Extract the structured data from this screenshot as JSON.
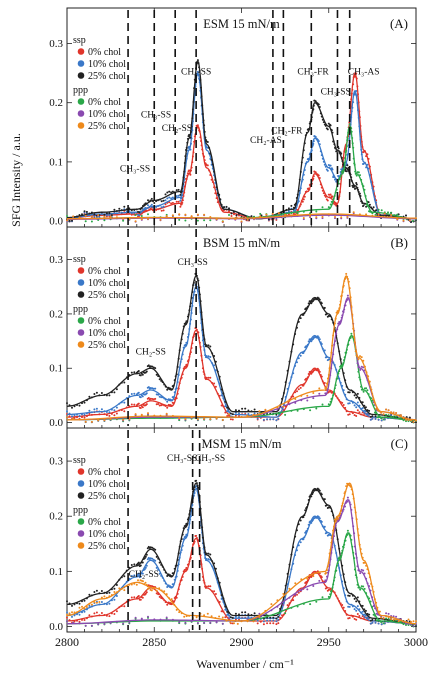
{
  "chart_data": {
    "type": "line",
    "xlabel": "Wavenumber / cm⁻¹",
    "ylabel": "SFG Intensity / a.u.",
    "xlim": [
      2800,
      3000
    ],
    "ylim": [
      -0.01,
      0.36
    ],
    "x_ticks": [
      2800,
      2850,
      2900,
      2950,
      3000
    ],
    "y_ticks": [
      0.0,
      0.1,
      0.2,
      0.3
    ],
    "legend": {
      "placement": "top-left",
      "groups": [
        {
          "label": "ssp",
          "entries": [
            "0% chol",
            "10% chol",
            "25% chol"
          ],
          "colors": [
            "#e0352b",
            "#3a78c8",
            "#222222"
          ]
        },
        {
          "label": "ppp",
          "entries": [
            "0% chol",
            "10% chol",
            "25% chol"
          ],
          "colors": [
            "#2aa748",
            "#8a4ab0",
            "#ee8a1c"
          ]
        }
      ]
    },
    "panels": [
      {
        "id": "A",
        "letter": "(A)",
        "title": "ESM 15 mN/m",
        "vlines": [
          2835,
          2850,
          2862,
          2874,
          2918,
          2924,
          2940,
          2955,
          2962
        ],
        "annotations": [
          {
            "text": "CH₃-SS",
            "x": 2839,
            "y": 0.084
          },
          {
            "text": "CH₃-SS",
            "x": 2851,
            "y": 0.175
          },
          {
            "text": "CH₂-SS",
            "x": 2863,
            "y": 0.152
          },
          {
            "text": "CH₃-SS",
            "x": 2874,
            "y": 0.248
          },
          {
            "text": "CH₂-AS",
            "x": 2914,
            "y": 0.132
          },
          {
            "text": "CH₂-FR",
            "x": 2926,
            "y": 0.148
          },
          {
            "text": "CH₃-FR",
            "x": 2941,
            "y": 0.248
          },
          {
            "text": "CH₃-SS",
            "x": 2954,
            "y": 0.214
          },
          {
            "text": "CH₃-AS",
            "x": 2970,
            "y": 0.248
          }
        ],
        "series": [
          {
            "name": "ssp 0% chol",
            "x": [
              2800,
              2820,
              2840,
              2850,
              2865,
              2870,
              2875,
              2880,
              2890,
              2910,
              2930,
              2938,
              2942,
              2950,
              2955,
              2960,
              2965,
              2970,
              2980,
              3000
            ],
            "y": [
              0.005,
              0.01,
              0.012,
              0.02,
              0.03,
              0.08,
              0.16,
              0.09,
              0.015,
              0.004,
              0.01,
              0.05,
              0.08,
              0.04,
              0.03,
              0.13,
              0.25,
              0.12,
              0.01,
              0.004
            ]
          },
          {
            "name": "ssp 10% chol",
            "x": [
              2800,
              2820,
              2840,
              2850,
              2865,
              2870,
              2875,
              2880,
              2890,
              2910,
              2930,
              2938,
              2942,
              2950,
              2955,
              2960,
              2965,
              2970,
              2980,
              3000
            ],
            "y": [
              0.005,
              0.012,
              0.015,
              0.025,
              0.04,
              0.12,
              0.25,
              0.12,
              0.02,
              0.004,
              0.015,
              0.1,
              0.14,
              0.09,
              0.07,
              0.1,
              0.22,
              0.1,
              0.01,
              0.004
            ]
          },
          {
            "name": "ssp 25% chol",
            "x": [
              2800,
              2820,
              2840,
              2850,
              2865,
              2870,
              2875,
              2880,
              2890,
              2910,
              2930,
              2938,
              2942,
              2950,
              2955,
              2960,
              2965,
              2970,
              2980,
              3000
            ],
            "y": [
              0.006,
              0.015,
              0.02,
              0.035,
              0.05,
              0.14,
              0.27,
              0.13,
              0.02,
              0.004,
              0.02,
              0.15,
              0.2,
              0.16,
              0.12,
              0.09,
              0.06,
              0.03,
              0.01,
              0.004
            ]
          },
          {
            "name": "ppp 0% chol",
            "x": [
              2800,
              2850,
              2900,
              2950,
              2958,
              2962,
              2966,
              2975,
              3000
            ],
            "y": [
              0.004,
              0.006,
              0.005,
              0.02,
              0.08,
              0.16,
              0.08,
              0.015,
              0.004
            ]
          },
          {
            "name": "ppp 10% chol",
            "x": [
              2800,
              2850,
              2900,
              2950,
              3000
            ],
            "y": [
              0.003,
              0.005,
              0.004,
              0.01,
              0.004
            ]
          },
          {
            "name": "ppp 25% chol",
            "x": [
              2800,
              2850,
              2900,
              2950,
              3000
            ],
            "y": [
              0.004,
              0.006,
              0.005,
              0.012,
              0.005
            ]
          }
        ]
      },
      {
        "id": "B",
        "letter": "(B)",
        "title": "BSM 15 mN/m",
        "vlines": [
          2835,
          2874
        ],
        "annotations": [
          {
            "text": "CH₂-SS",
            "x": 2848,
            "y": 0.125
          },
          {
            "text": "CH₃-SS",
            "x": 2872,
            "y": 0.29
          }
        ],
        "series": [
          {
            "name": "ssp 0% chol",
            "x": [
              2800,
              2820,
              2840,
              2848,
              2860,
              2868,
              2874,
              2880,
              2895,
              2920,
              2935,
              2942,
              2950,
              2962,
              2975,
              3000
            ],
            "y": [
              0.01,
              0.015,
              0.03,
              0.04,
              0.03,
              0.1,
              0.17,
              0.08,
              0.01,
              0.01,
              0.07,
              0.1,
              0.06,
              0.02,
              0.01,
              0.005
            ]
          },
          {
            "name": "ssp 10% chol",
            "x": [
              2800,
              2820,
              2840,
              2848,
              2860,
              2868,
              2874,
              2880,
              2895,
              2920,
              2935,
              2942,
              2950,
              2962,
              2975,
              3000
            ],
            "y": [
              0.015,
              0.02,
              0.05,
              0.06,
              0.04,
              0.14,
              0.25,
              0.12,
              0.015,
              0.01,
              0.13,
              0.16,
              0.12,
              0.04,
              0.01,
              0.005
            ]
          },
          {
            "name": "ssp 25% chol",
            "x": [
              2800,
              2820,
              2840,
              2848,
              2860,
              2868,
              2874,
              2880,
              2895,
              2920,
              2935,
              2942,
              2950,
              2962,
              2975,
              3000
            ],
            "y": [
              0.03,
              0.05,
              0.09,
              0.1,
              0.06,
              0.18,
              0.27,
              0.14,
              0.02,
              0.02,
              0.2,
              0.23,
              0.2,
              0.06,
              0.015,
              0.005
            ]
          },
          {
            "name": "ppp 0% chol",
            "x": [
              2800,
              2850,
              2900,
              2950,
              2957,
              2963,
              2970,
              2980,
              3000
            ],
            "y": [
              0.005,
              0.008,
              0.01,
              0.03,
              0.1,
              0.16,
              0.06,
              0.01,
              0.004
            ]
          },
          {
            "name": "ppp 10% chol",
            "x": [
              2800,
              2850,
              2900,
              2948,
              2956,
              2961,
              2968,
              2980,
              3000
            ],
            "y": [
              0.005,
              0.01,
              0.01,
              0.05,
              0.18,
              0.23,
              0.1,
              0.02,
              0.005
            ]
          },
          {
            "name": "ppp 25% chol",
            "x": [
              2800,
              2850,
              2900,
              2948,
              2955,
              2960,
              2967,
              2980,
              3000
            ],
            "y": [
              0.005,
              0.012,
              0.01,
              0.06,
              0.2,
              0.27,
              0.12,
              0.02,
              0.005
            ]
          }
        ]
      },
      {
        "id": "C",
        "letter": "(C)",
        "title": "MSM 15 mN/m",
        "vlines": [
          2835,
          2872,
          2876
        ],
        "annotations": [
          {
            "text": "CH₂-SS",
            "x": 2844,
            "y": 0.09
          },
          {
            "text": "CH₃-SS",
            "x": 2866,
            "y": 0.3
          },
          {
            "text": "CH₃-SS",
            "x": 2882,
            "y": 0.3
          }
        ],
        "series": [
          {
            "name": "ssp 0% chol",
            "x": [
              2800,
              2820,
              2840,
              2848,
              2860,
              2868,
              2874,
              2880,
              2895,
              2920,
              2935,
              2942,
              2950,
              2962,
              2975,
              3000
            ],
            "y": [
              0.01,
              0.02,
              0.05,
              0.07,
              0.04,
              0.1,
              0.16,
              0.07,
              0.01,
              0.01,
              0.07,
              0.1,
              0.07,
              0.02,
              0.01,
              0.005
            ]
          },
          {
            "name": "ssp 10% chol",
            "x": [
              2800,
              2820,
              2840,
              2848,
              2860,
              2868,
              2874,
              2880,
              2895,
              2920,
              2935,
              2942,
              2950,
              2962,
              2975,
              3000
            ],
            "y": [
              0.02,
              0.04,
              0.09,
              0.12,
              0.07,
              0.16,
              0.25,
              0.12,
              0.015,
              0.015,
              0.16,
              0.2,
              0.17,
              0.04,
              0.01,
              0.005
            ]
          },
          {
            "name": "ssp 25% chol",
            "x": [
              2800,
              2820,
              2840,
              2848,
              2860,
              2868,
              2874,
              2880,
              2895,
              2920,
              2935,
              2942,
              2950,
              2962,
              2975,
              3000
            ],
            "y": [
              0.04,
              0.06,
              0.11,
              0.14,
              0.09,
              0.18,
              0.26,
              0.13,
              0.02,
              0.02,
              0.2,
              0.25,
              0.22,
              0.06,
              0.015,
              0.005
            ]
          },
          {
            "name": "ppp 0% chol",
            "x": [
              2800,
              2850,
              2900,
              2950,
              2956,
              2961,
              2968,
              2980,
              3000
            ],
            "y": [
              0.005,
              0.01,
              0.01,
              0.05,
              0.12,
              0.17,
              0.07,
              0.01,
              0.004
            ]
          },
          {
            "name": "ppp 10% chol",
            "x": [
              2800,
              2850,
              2900,
              2948,
              2955,
              2961,
              2968,
              2980,
              3000
            ],
            "y": [
              0.005,
              0.012,
              0.01,
              0.08,
              0.19,
              0.23,
              0.1,
              0.02,
              0.005
            ]
          },
          {
            "name": "ppp 25% chol",
            "x": [
              2800,
              2820,
              2840,
              2850,
              2870,
              2900,
              2948,
              2955,
              2962,
              2970,
              2980,
              3000
            ],
            "y": [
              0.02,
              0.05,
              0.08,
              0.07,
              0.02,
              0.01,
              0.1,
              0.2,
              0.26,
              0.12,
              0.02,
              0.005
            ]
          }
        ]
      }
    ]
  }
}
